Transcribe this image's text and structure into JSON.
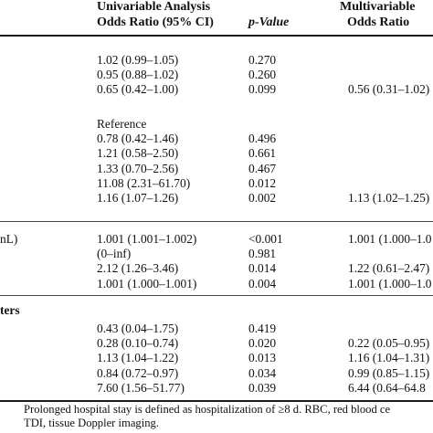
{
  "header": {
    "univariable_line1": "Univariable Analysis",
    "univariable_line2": "Odds Ratio (95% CI)",
    "pvalue": "p-Value",
    "multivariable_line1": "Multivariable",
    "multivariable_line2": "Odds Ratio"
  },
  "groups": [
    {
      "label": "",
      "rows": [
        {
          "label": "",
          "uni": "1.02 (0.99–1.05)",
          "p": "0.270",
          "multi": ""
        },
        {
          "label": "",
          "uni": "0.95 (0.88–1.02)",
          "p": "0.260",
          "multi": ""
        },
        {
          "label": "",
          "uni": "0.65 (0.42–1.00)",
          "p": "0.099",
          "multi": "0.56 (0.31–1.02)"
        }
      ]
    },
    {
      "label": "",
      "rows": [
        {
          "label": "",
          "uni": "Reference",
          "p": "",
          "multi": ""
        },
        {
          "label": "",
          "uni": "0.78 (0.42–1.46)",
          "p": "0.496",
          "multi": ""
        },
        {
          "label": "",
          "uni": "1.21 (0.58–2.50)",
          "p": "0.661",
          "multi": ""
        },
        {
          "label": "",
          "uni": "1.33 (0.70–2.56)",
          "p": "0.467",
          "multi": ""
        },
        {
          "label": "",
          "uni": "11.08 (2.31–61.70)",
          "p": "0.012",
          "multi": ""
        },
        {
          "label": "",
          "uni": "1.16 (1.07–1.26)",
          "p": "0.002",
          "multi": "1.13 (1.02–1.25)"
        }
      ]
    },
    {
      "label": "",
      "rows": [
        {
          "label": "nL)",
          "uni": "1.001 (1.001–1.002)",
          "p": "<0.001",
          "multi": "1.001 (1.000–1.0"
        },
        {
          "label": "",
          "uni": "(0–inf)",
          "p": "0.981",
          "multi": ""
        },
        {
          "label": "",
          "uni": "2.12 (1.26–3.46)",
          "p": "0.014",
          "multi": "1.22 (0.61–2.47)"
        },
        {
          "label": "",
          "uni": "1.001 (1.000–1.001)",
          "p": "0.004",
          "multi": "1.001 (1.000–1.0"
        }
      ]
    },
    {
      "label": "ters",
      "rows": [
        {
          "label": "",
          "uni": "0.43 (0.04–1.75)",
          "p": "0.419",
          "multi": ""
        },
        {
          "label": "",
          "uni": "0.28 (0.10–0.74)",
          "p": "0.020",
          "multi": "0.22 (0.05–0.95)"
        },
        {
          "label": "",
          "uni": "1.13 (1.04–1.22)",
          "p": "0.013",
          "multi": "1.16 (1.04–1.31)"
        },
        {
          "label": "",
          "uni": "0.84 (0.72–0.97)",
          "p": "0.034",
          "multi": "0.99 (0.85–1.15)"
        },
        {
          "label": "",
          "uni": "7.60 (1.56–51.77)",
          "p": "0.039",
          "multi": "6.44 (0.64–64.8"
        }
      ]
    }
  ],
  "footnote": {
    "line1": "Prolonged hospital stay is defined as hospitalization of ≥8 d. RBC, red blood ce",
    "line2": "TDI, tissue Doppler imaging."
  }
}
